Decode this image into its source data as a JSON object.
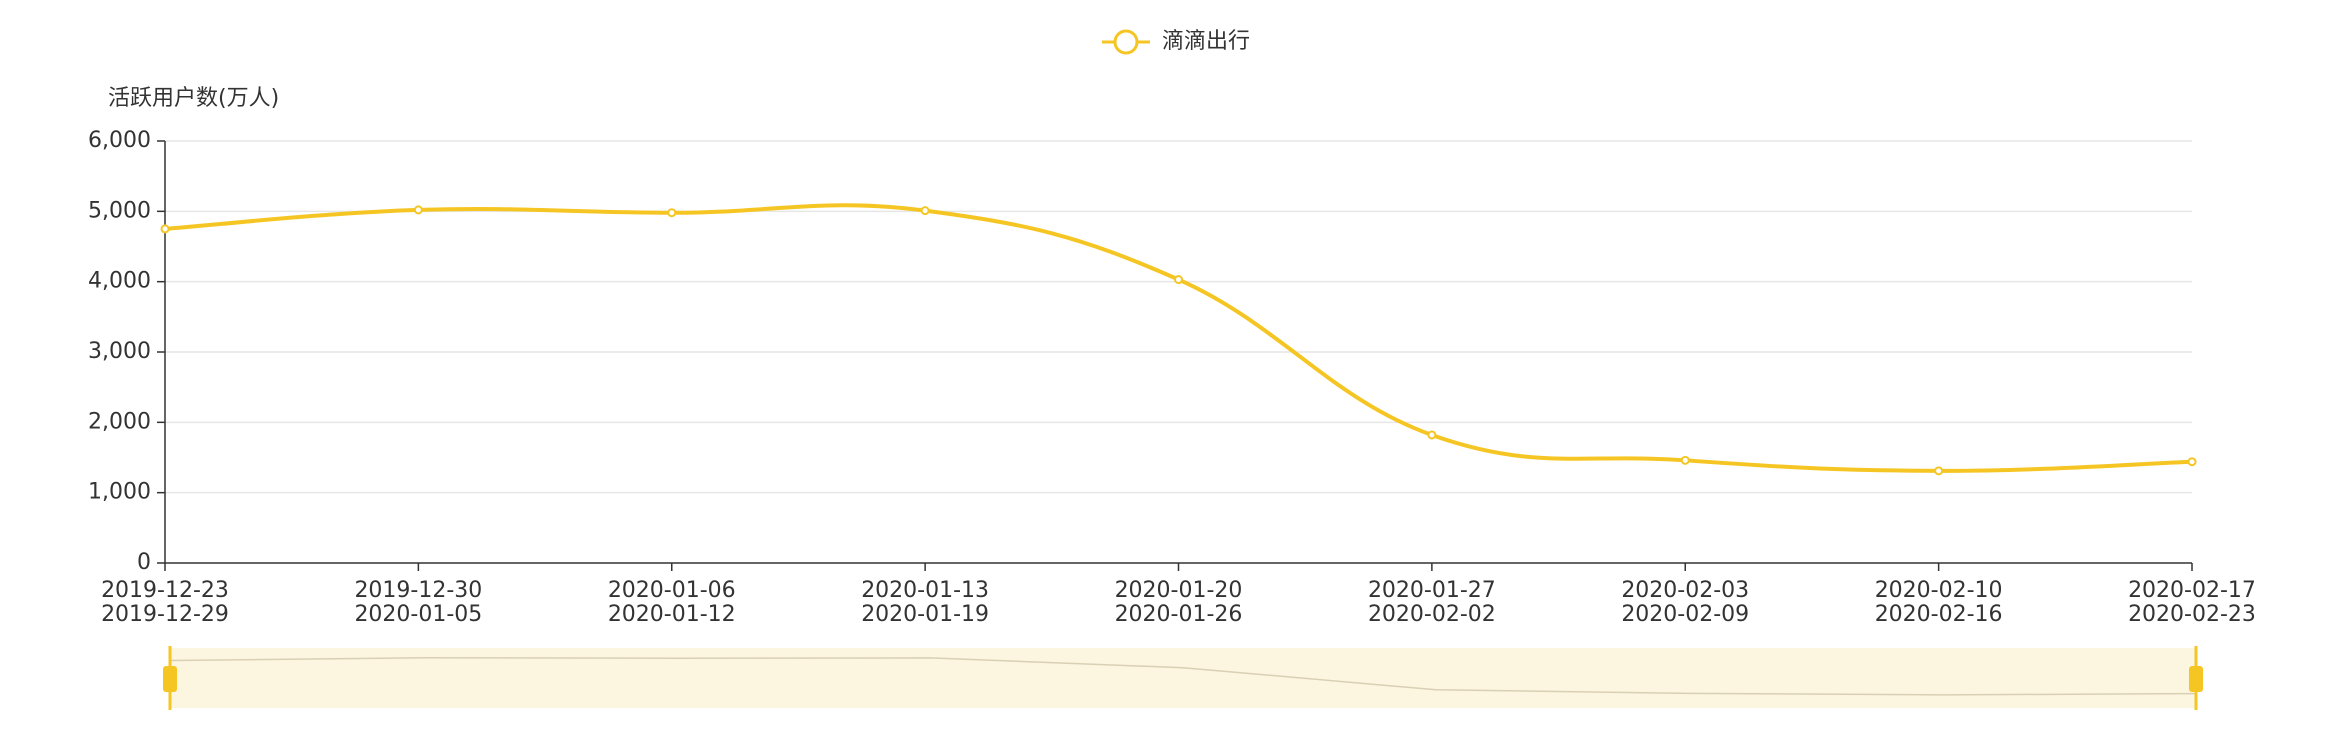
{
  "chart_data": {
    "type": "line",
    "y_label": "活跃用户数(万人)",
    "categories": [
      [
        "2019-12-23",
        "2019-12-29"
      ],
      [
        "2019-12-30",
        "2020-01-05"
      ],
      [
        "2020-01-06",
        "2020-01-12"
      ],
      [
        "2020-01-13",
        "2020-01-19"
      ],
      [
        "2020-01-20",
        "2020-01-26"
      ],
      [
        "2020-01-27",
        "2020-02-02"
      ],
      [
        "2020-02-03",
        "2020-02-09"
      ],
      [
        "2020-02-10",
        "2020-02-16"
      ],
      [
        "2020-02-17",
        "2020-02-23"
      ]
    ],
    "series": [
      {
        "name": "滴滴出行",
        "color": "#f5c623",
        "values": [
          4750,
          5020,
          4980,
          5010,
          4030,
          1820,
          1460,
          1310,
          1440
        ]
      }
    ],
    "ylim": [
      0,
      6000
    ],
    "yticks": [
      0,
      {
        "value": 1000,
        "label": "1,000"
      },
      {
        "value": 2000,
        "label": "2,000"
      },
      {
        "value": 3000,
        "label": "3,000"
      },
      {
        "value": 4000,
        "label": "4,000"
      },
      {
        "value": 5000,
        "label": "5,000"
      },
      {
        "value": 6000,
        "label": "6,000"
      }
    ],
    "grid": true,
    "legend": "top"
  }
}
